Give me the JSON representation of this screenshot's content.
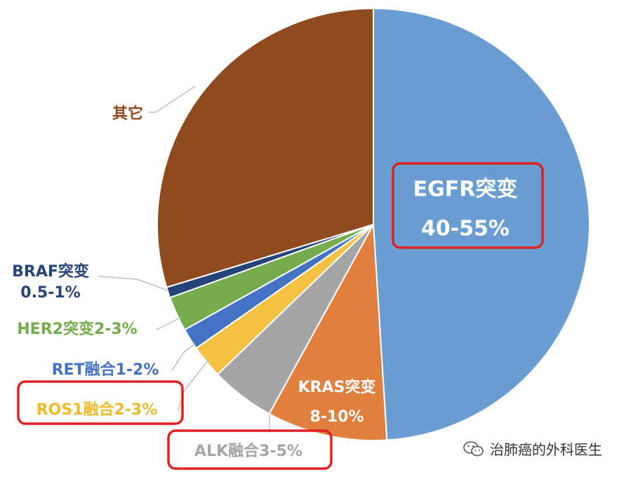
{
  "chart_data": {
    "type": "pie",
    "start_angle_deg": 0,
    "direction": "clockwise",
    "slices": [
      {
        "label_lines": [
          "EGFR突变",
          "40-55%"
        ],
        "value": 49.0,
        "color": "#6a9ed3",
        "label_color": "#ffffff",
        "highlight": true
      },
      {
        "label_lines": [
          "KRAS突变",
          "8-10%"
        ],
        "value": 9.0,
        "color": "#e07f3e",
        "label_color": "#ffffff",
        "highlight": false
      },
      {
        "label_lines": [
          "ALK融合3-5%"
        ],
        "value": 4.8,
        "color": "#a5a5a5",
        "label_color": "#a5a5a5",
        "highlight": true
      },
      {
        "label_lines": [
          "ROS1融合2-3%"
        ],
        "value": 2.5,
        "color": "#f4c142",
        "label_color": "#f0b929",
        "highlight": true
      },
      {
        "label_lines": [
          "RET融合1-2%"
        ],
        "value": 1.6,
        "color": "#4472c4",
        "label_color": "#4472c4",
        "highlight": false
      },
      {
        "label_lines": [
          "HER2突变2-3%"
        ],
        "value": 2.6,
        "color": "#77ac4e",
        "label_color": "#77ac4e",
        "highlight": false
      },
      {
        "label_lines": [
          "BRAF突变",
          "0.5-1%"
        ],
        "value": 0.8,
        "color": "#264478",
        "label_color": "#264478",
        "highlight": false
      },
      {
        "label_lines": [
          "其它"
        ],
        "value": 29.7,
        "color": "#8f4a1f",
        "label_color": "#8f4a1f",
        "highlight": false
      }
    ],
    "highlight_color": "#e02020"
  },
  "watermark": {
    "text": "治肺癌的外科医生",
    "icon": "wechat-icon"
  }
}
